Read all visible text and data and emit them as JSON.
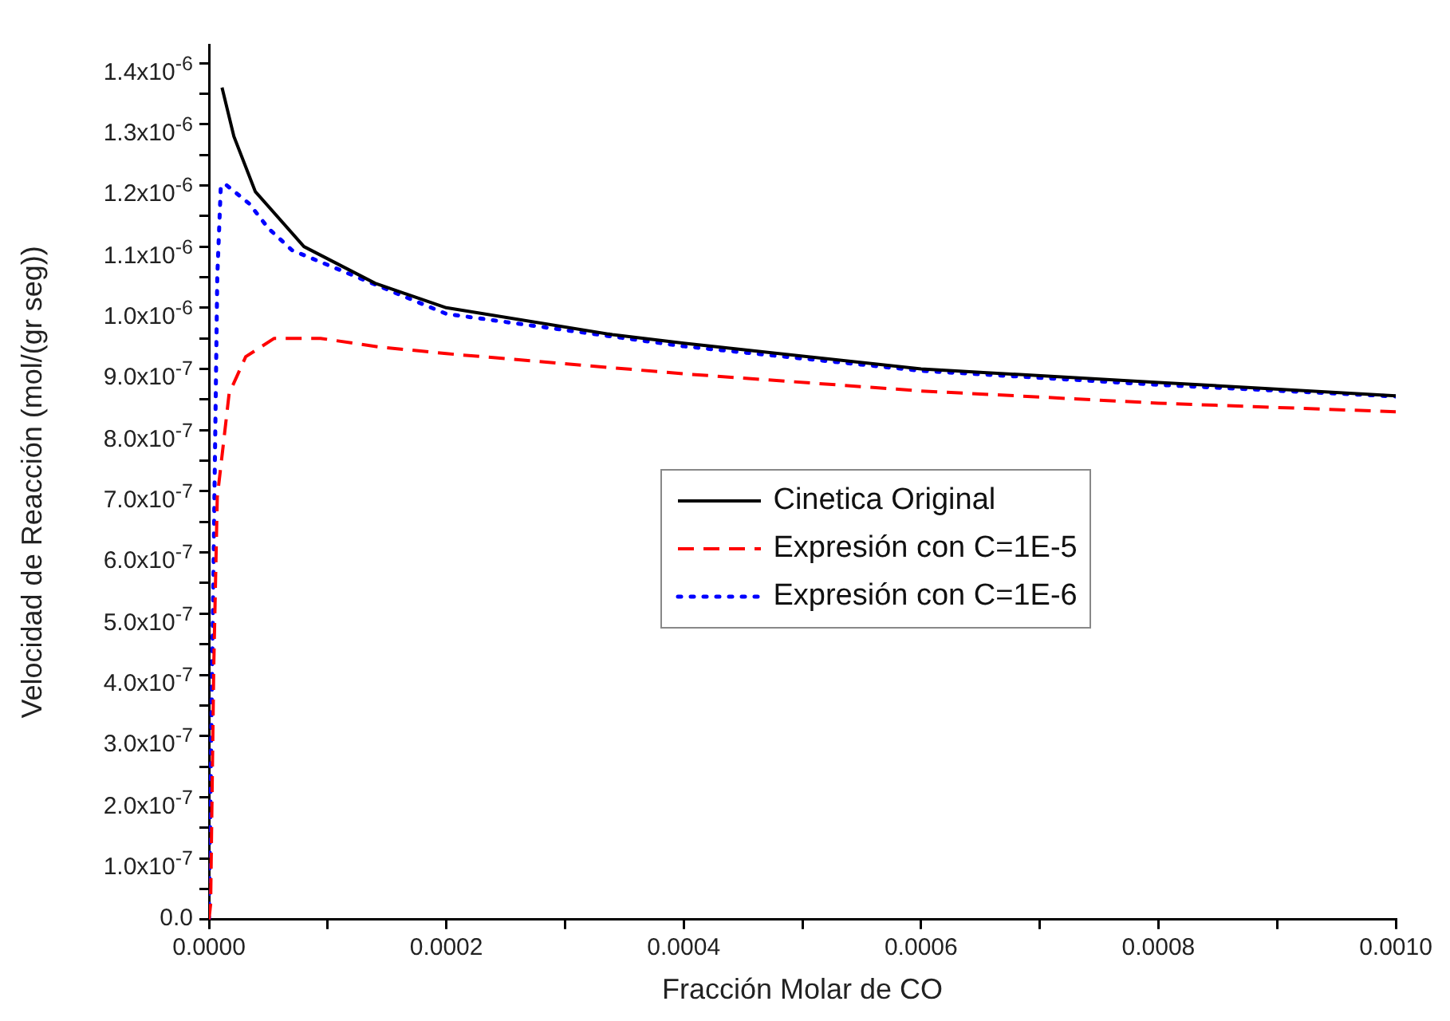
{
  "chart_data": {
    "type": "line",
    "xlabel": "Fracción Molar de CO",
    "ylabel": "Velocidad de Reacción (mol/(gr seg))",
    "xlim": [
      0,
      0.001
    ],
    "ylim": [
      0,
      1.43e-06
    ],
    "xticks": [
      {
        "value": 0,
        "label": "0.0000"
      },
      {
        "value": 0.0001,
        "label": null
      },
      {
        "value": 0.0002,
        "label": "0.0002"
      },
      {
        "value": 0.0003,
        "label": null
      },
      {
        "value": 0.0004,
        "label": "0.0004"
      },
      {
        "value": 0.0005,
        "label": null
      },
      {
        "value": 0.0006,
        "label": "0.0006"
      },
      {
        "value": 0.0007,
        "label": null
      },
      {
        "value": 0.0008,
        "label": "0.0008"
      },
      {
        "value": 0.0009,
        "label": null
      },
      {
        "value": 0.001,
        "label": "0.0010"
      }
    ],
    "yticks": [
      {
        "value": 0,
        "label": "0.0"
      },
      {
        "value": 5e-08,
        "label": null
      },
      {
        "value": 1e-07,
        "label": "1.0x10$^{-7}$"
      },
      {
        "value": 1.5e-07,
        "label": null
      },
      {
        "value": 2e-07,
        "label": "2.0x10$^{-7}$"
      },
      {
        "value": 2.5e-07,
        "label": null
      },
      {
        "value": 3e-07,
        "label": "3.0x10$^{-7}$"
      },
      {
        "value": 3.5e-07,
        "label": null
      },
      {
        "value": 4e-07,
        "label": "4.0x10$^{-7}$"
      },
      {
        "value": 4.5e-07,
        "label": null
      },
      {
        "value": 5e-07,
        "label": "5.0x10$^{-7}$"
      },
      {
        "value": 5.5e-07,
        "label": null
      },
      {
        "value": 6e-07,
        "label": "6.0x10$^{-7}$"
      },
      {
        "value": 6.5e-07,
        "label": null
      },
      {
        "value": 7e-07,
        "label": "7.0x10$^{-7}$"
      },
      {
        "value": 7.5e-07,
        "label": null
      },
      {
        "value": 8e-07,
        "label": "8.0x10$^{-7}$"
      },
      {
        "value": 8.5e-07,
        "label": null
      },
      {
        "value": 9e-07,
        "label": "9.0x10$^{-7}$"
      },
      {
        "value": 9.5e-07,
        "label": null
      },
      {
        "value": 1e-06,
        "label": "1.0x10$^{-6}$"
      },
      {
        "value": 1.05e-06,
        "label": null
      },
      {
        "value": 1.1e-06,
        "label": "1.1x10$^{-6}$"
      },
      {
        "value": 1.15e-06,
        "label": null
      },
      {
        "value": 1.2e-06,
        "label": "1.2x10$^{-6}$"
      },
      {
        "value": 1.25e-06,
        "label": null
      },
      {
        "value": 1.3e-06,
        "label": "1.3x10$^{-6}$"
      },
      {
        "value": 1.35e-06,
        "label": null
      },
      {
        "value": 1.4e-06,
        "label": "1.4x10$^{-6}$"
      }
    ],
    "grid": false,
    "legend": "center",
    "marker": "none",
    "series": [
      {
        "name": "Cinetica Original",
        "color": "#000000",
        "line_style": "solid",
        "x": [
          1.1e-05,
          2.1e-05,
          3.9e-05,
          8e-05,
          0.00014,
          0.0002,
          0.00034,
          0.0004,
          0.0006,
          0.0008,
          0.001
        ],
        "values": [
          1.36e-06,
          1.28e-06,
          1.19e-06,
          1.1e-06,
          1.04e-06,
          1e-06,
          9.56e-07,
          9.42e-07,
          9e-07,
          8.78e-07,
          8.56e-07
        ]
      },
      {
        "name": "Expresión con C=1E-5",
        "color": "#ff0000",
        "line_style": "dashed",
        "x": [
          0,
          1.4e-06,
          4e-06,
          7e-06,
          1.7e-05,
          3.1e-05,
          5.5e-05,
          9.4e-05,
          0.000143,
          0.0002,
          0.0004,
          0.0006,
          0.0008,
          0.001
        ],
        "values": [
          0,
          2.5e-08,
          4.1e-07,
          6.9e-07,
          8.6e-07,
          9.2e-07,
          9.5e-07,
          9.5e-07,
          9.36e-07,
          9.25e-07,
          8.92e-07,
          8.64e-07,
          8.44e-07,
          8.3e-07
        ]
      },
      {
        "name": "Expresión con C=1E-6",
        "color": "#0000ff",
        "line_style": "dotted",
        "x": [
          0,
          4e-06,
          7e-06,
          1e-05,
          1.5e-05,
          3.4e-05,
          5e-05,
          7e-05,
          0.0002,
          0.0004,
          0.0006,
          0.0008,
          0.001
        ],
        "values": [
          0,
          6e-07,
          1.05e-06,
          1.2e-06,
          1.2e-06,
          1.17e-06,
          1.13e-06,
          1.094e-06,
          9.9e-07,
          9.37e-07,
          8.97e-07,
          8.74e-07,
          8.55e-07
        ]
      }
    ]
  }
}
